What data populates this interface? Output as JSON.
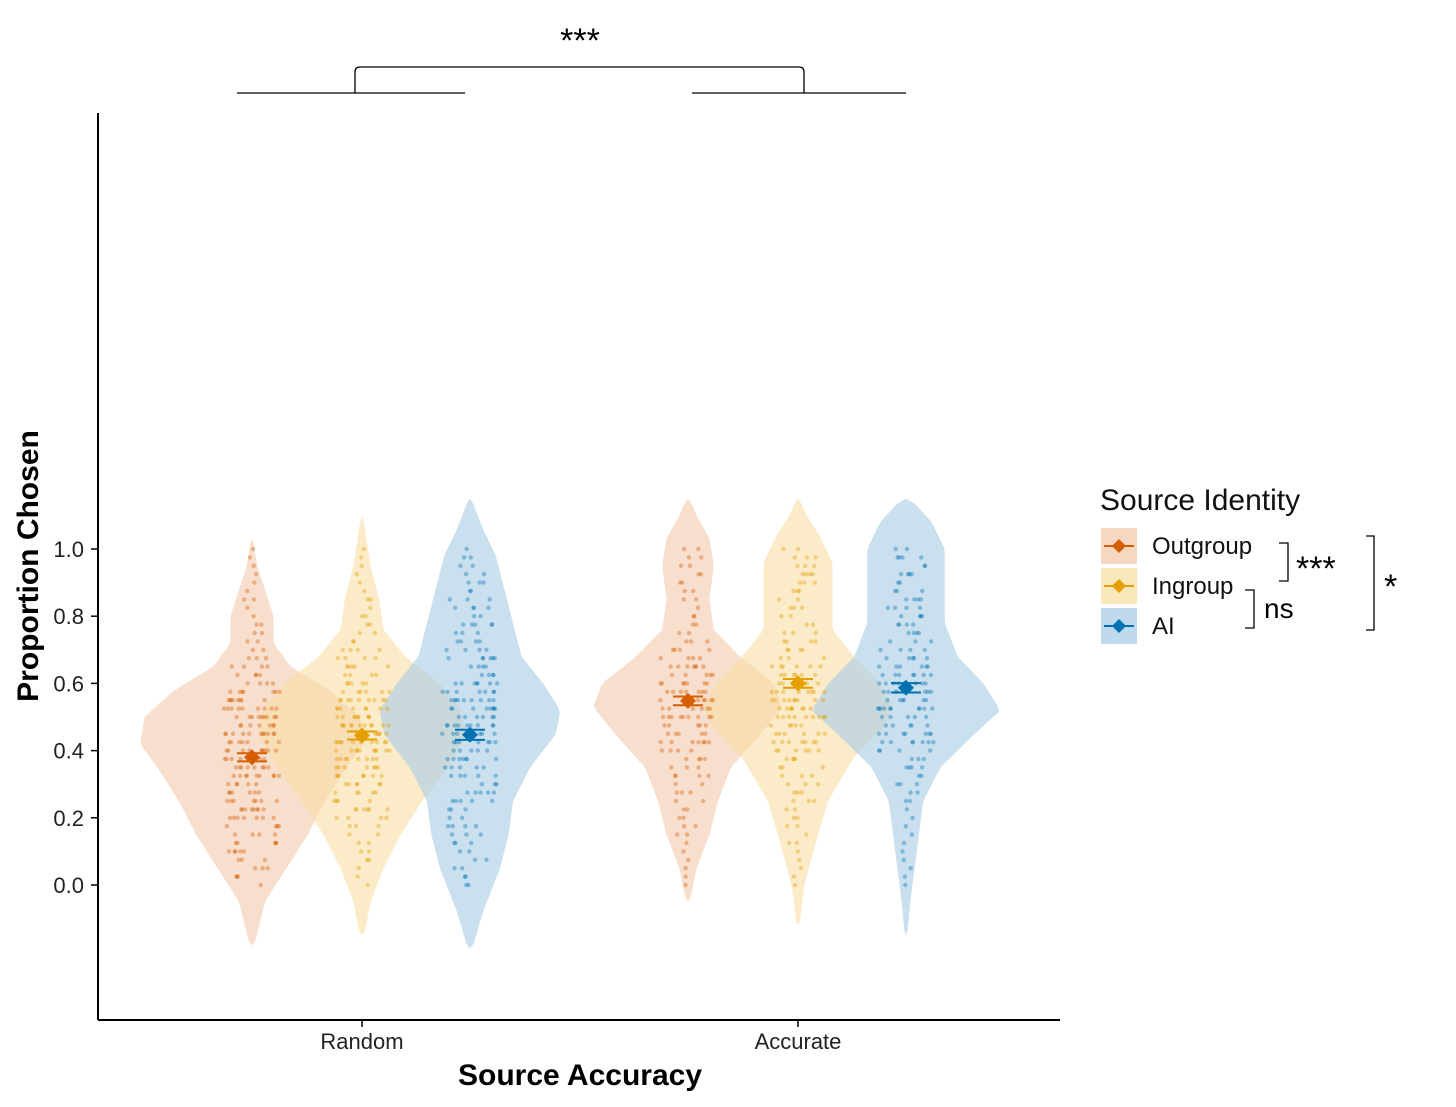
{
  "chart_data": {
    "type": "violin",
    "xlabel": "Source Accuracy",
    "ylabel": "Proportion Chosen",
    "ylim": [
      -0.2,
      1.15
    ],
    "yticks": [
      "0.0",
      "0.2",
      "0.4",
      "0.6",
      "0.8",
      "1.0"
    ],
    "categories": [
      "Random",
      "Accurate"
    ],
    "legend": {
      "title": "Source Identity",
      "position": "right",
      "items": [
        {
          "name": "Outgroup",
          "color": "#D55E00",
          "fill": "#F2C9AE"
        },
        {
          "name": "Ingroup",
          "color": "#E69F00",
          "fill": "#F8DFA6"
        },
        {
          "name": "AI",
          "color": "#0072B2",
          "fill": "#A9CDE5"
        }
      ]
    },
    "series": [
      {
        "name": "Outgroup",
        "means": [
          0.38,
          0.548
        ],
        "se": [
          0.012,
          0.013
        ]
      },
      {
        "name": "Ingroup",
        "means": [
          0.445,
          0.6
        ],
        "se": [
          0.012,
          0.013
        ]
      },
      {
        "name": "AI",
        "means": [
          0.447,
          0.587
        ],
        "se": [
          0.015,
          0.014
        ]
      }
    ],
    "violins": [
      {
        "series": "Outgroup",
        "category": "Random",
        "ymin": -0.18,
        "ymax": 1.03,
        "profile": [
          [
            -0.18,
            0.005
          ],
          [
            -0.05,
            0.03
          ],
          [
            0.05,
            0.08
          ],
          [
            0.15,
            0.13
          ],
          [
            0.25,
            0.17
          ],
          [
            0.35,
            0.22
          ],
          [
            0.42,
            0.26
          ],
          [
            0.5,
            0.25
          ],
          [
            0.58,
            0.18
          ],
          [
            0.65,
            0.09
          ],
          [
            0.72,
            0.05
          ],
          [
            0.8,
            0.05
          ],
          [
            0.88,
            0.03
          ],
          [
            0.95,
            0.012
          ],
          [
            1.03,
            0.002
          ]
        ]
      },
      {
        "series": "Ingroup",
        "category": "Random",
        "ymin": -0.15,
        "ymax": 1.1,
        "profile": [
          [
            -0.15,
            0.005
          ],
          [
            -0.05,
            0.02
          ],
          [
            0.05,
            0.05
          ],
          [
            0.15,
            0.09
          ],
          [
            0.25,
            0.14
          ],
          [
            0.35,
            0.2
          ],
          [
            0.45,
            0.24
          ],
          [
            0.52,
            0.23
          ],
          [
            0.6,
            0.18
          ],
          [
            0.68,
            0.1
          ],
          [
            0.76,
            0.05
          ],
          [
            0.85,
            0.04
          ],
          [
            0.95,
            0.02
          ],
          [
            1.05,
            0.008
          ],
          [
            1.1,
            0.002
          ]
        ]
      },
      {
        "series": "AI",
        "category": "Random",
        "ymin": -0.19,
        "ymax": 1.15,
        "profile": [
          [
            -0.19,
            0.005
          ],
          [
            -0.08,
            0.03
          ],
          [
            0.05,
            0.07
          ],
          [
            0.15,
            0.09
          ],
          [
            0.25,
            0.1
          ],
          [
            0.35,
            0.14
          ],
          [
            0.45,
            0.2
          ],
          [
            0.52,
            0.21
          ],
          [
            0.6,
            0.17
          ],
          [
            0.68,
            0.12
          ],
          [
            0.78,
            0.1
          ],
          [
            0.88,
            0.08
          ],
          [
            0.98,
            0.06
          ],
          [
            1.06,
            0.03
          ],
          [
            1.15,
            0.003
          ]
        ]
      },
      {
        "series": "Outgroup",
        "category": "Accurate",
        "ymin": -0.05,
        "ymax": 1.15,
        "profile": [
          [
            -0.05,
            0.004
          ],
          [
            0.05,
            0.02
          ],
          [
            0.15,
            0.05
          ],
          [
            0.25,
            0.07
          ],
          [
            0.35,
            0.1
          ],
          [
            0.45,
            0.17
          ],
          [
            0.53,
            0.22
          ],
          [
            0.6,
            0.2
          ],
          [
            0.68,
            0.12
          ],
          [
            0.76,
            0.06
          ],
          [
            0.85,
            0.05
          ],
          [
            0.95,
            0.06
          ],
          [
            1.03,
            0.05
          ],
          [
            1.1,
            0.02
          ],
          [
            1.15,
            0.003
          ]
        ]
      },
      {
        "series": "Ingroup",
        "category": "Accurate",
        "ymin": -0.12,
        "ymax": 1.15,
        "profile": [
          [
            -0.12,
            0.003
          ],
          [
            0.0,
            0.015
          ],
          [
            0.12,
            0.04
          ],
          [
            0.25,
            0.07
          ],
          [
            0.38,
            0.13
          ],
          [
            0.47,
            0.2
          ],
          [
            0.53,
            0.22
          ],
          [
            0.6,
            0.19
          ],
          [
            0.68,
            0.13
          ],
          [
            0.76,
            0.08
          ],
          [
            0.86,
            0.08
          ],
          [
            0.96,
            0.08
          ],
          [
            1.04,
            0.05
          ],
          [
            1.1,
            0.02
          ],
          [
            1.15,
            0.003
          ]
        ]
      },
      {
        "series": "AI",
        "category": "Accurate",
        "ymin": -0.15,
        "ymax": 1.15,
        "profile": [
          [
            -0.15,
            0.003
          ],
          [
            -0.05,
            0.01
          ],
          [
            0.05,
            0.02
          ],
          [
            0.15,
            0.03
          ],
          [
            0.25,
            0.04
          ],
          [
            0.35,
            0.08
          ],
          [
            0.45,
            0.16
          ],
          [
            0.52,
            0.22
          ],
          [
            0.6,
            0.18
          ],
          [
            0.68,
            0.12
          ],
          [
            0.78,
            0.09
          ],
          [
            0.9,
            0.09
          ],
          [
            1.0,
            0.09
          ],
          [
            1.08,
            0.06
          ],
          [
            1.15,
            0.01
          ]
        ]
      }
    ],
    "significance": {
      "top": "***",
      "legend_outgroup_ingroup": "***",
      "legend_ingroup_ai": "ns",
      "legend_outgroup_ai": "*"
    }
  }
}
